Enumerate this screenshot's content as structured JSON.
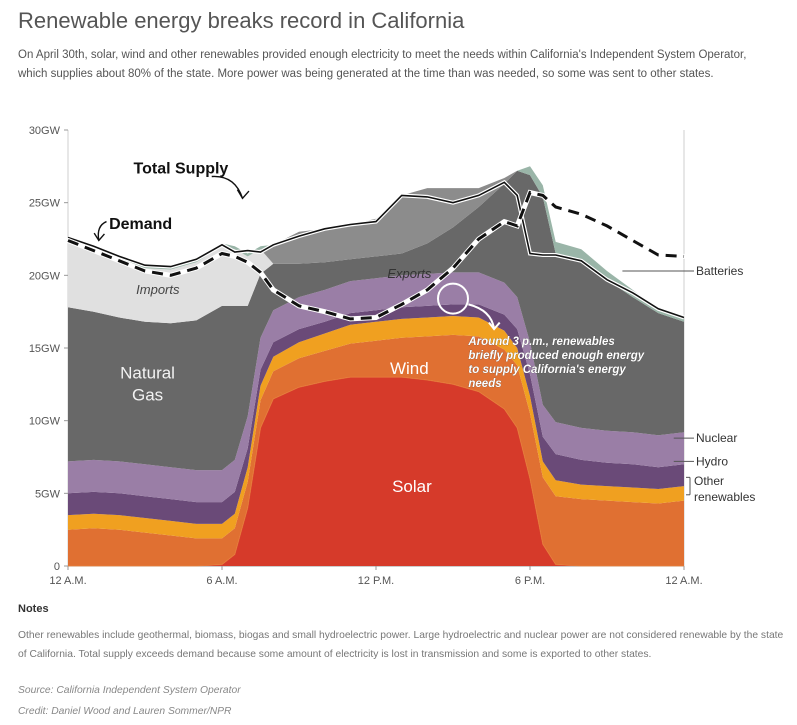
{
  "title": "Renewable energy breaks record in California",
  "subtitle": "On April 30th, solar, wind and other renewables provided enough electricity to meet the needs within California's Independent System Operator, which supplies about 80% of the state. More power was being generated at the time than was needed, so some was sent to other states.",
  "notes": {
    "heading": "Notes",
    "text": "Other renewables include geothermal, biomass, biogas and small hydroelectric power. Large hydroelectric and nuclear power are not considered renewable by the state of California. Total supply exceeds demand because some amount of electricity is lost in transmission and some is exported to other states."
  },
  "source": "Source: California Independent System Operator",
  "credit": "Credit: Daniel Wood and Lauren Sommer/NPR",
  "chart_data": {
    "type": "area",
    "x_unit": "hours since midnight",
    "xlim": [
      0,
      24
    ],
    "ylim": [
      0,
      30
    ],
    "y_ticks": [
      "0",
      "5GW",
      "10GW",
      "15GW",
      "20GW",
      "25GW",
      "30GW"
    ],
    "x_ticks": [
      "12 A.M.",
      "6 A.M.",
      "12 P.M.",
      "6 P.M.",
      "12 A.M."
    ],
    "x": [
      0,
      1,
      2,
      3,
      4,
      5,
      6,
      6.5,
      7,
      7.5,
      8,
      9,
      10,
      11,
      12,
      13,
      14,
      15,
      16,
      17,
      17.5,
      18,
      18.5,
      19,
      20,
      21,
      22,
      23,
      24
    ],
    "colors": {
      "Solar": "#d63a2a",
      "Other solar": "#e0532d",
      "Other renewables": "#f0a020",
      "Wind": "#e07032",
      "Hydro": "#6a4a78",
      "Nuclear": "#9a7ea6",
      "Natural Gas": "#686868",
      "Exports": "#8c8c8c",
      "Imports": "#e0e0e0",
      "Batteries": "#9ab5a8"
    },
    "series": [
      {
        "name": "Solar",
        "values": [
          0,
          0,
          0,
          0,
          0,
          0,
          0.1,
          0.8,
          4,
          9.5,
          11.5,
          12.3,
          12.7,
          13,
          13,
          13,
          12.8,
          12.5,
          12,
          10.8,
          9.5,
          6,
          1.5,
          0.1,
          0,
          0,
          0,
          0,
          0
        ]
      },
      {
        "name": "Wind",
        "values": [
          2.5,
          2.6,
          2.5,
          2.3,
          2.1,
          1.9,
          1.8,
          1.8,
          1.8,
          1.9,
          1.9,
          2,
          2.1,
          2.3,
          2.5,
          2.7,
          3,
          3.4,
          3.8,
          4.1,
          4.3,
          4.5,
          4.6,
          4.7,
          4.6,
          4.5,
          4.4,
          4.3,
          4.5
        ]
      },
      {
        "name": "Other renewables",
        "values": [
          1,
          1,
          1,
          1,
          1,
          1,
          1,
          1,
          1,
          1,
          1,
          1.1,
          1.2,
          1.3,
          1.3,
          1.3,
          1.3,
          1.3,
          1.3,
          1.3,
          1.2,
          1.2,
          1.1,
          1.1,
          1,
          1,
          1,
          1,
          1
        ]
      },
      {
        "name": "Hydro",
        "values": [
          1.5,
          1.5,
          1.5,
          1.5,
          1.5,
          1.5,
          1.5,
          1.5,
          1.3,
          1.1,
          1,
          0.9,
          0.8,
          0.8,
          0.8,
          0.8,
          0.8,
          0.8,
          0.9,
          1.1,
          1.3,
          1.5,
          1.7,
          1.8,
          1.7,
          1.6,
          1.6,
          1.5,
          1.5
        ]
      },
      {
        "name": "Nuclear",
        "values": [
          2.2,
          2.2,
          2.2,
          2.2,
          2.2,
          2.2,
          2.2,
          2.2,
          2.2,
          2.2,
          2.2,
          2.2,
          2.2,
          2.2,
          2.2,
          2.2,
          2.2,
          2.2,
          2.2,
          2.2,
          2.2,
          2.2,
          2.2,
          2.2,
          2.2,
          2.2,
          2.2,
          2.2,
          2.2
        ]
      },
      {
        "name": "Natural Gas",
        "values": [
          10.6,
          10.2,
          9.9,
          9.8,
          9.9,
          10.3,
          11.3,
          10.6,
          7.6,
          4.4,
          3.2,
          2.3,
          1.9,
          1.5,
          1.5,
          1.5,
          2.1,
          3.1,
          4.5,
          6.8,
          8.7,
          11.5,
          14.3,
          11.6,
          11.5,
          10.4,
          9.3,
          8.4,
          7.6
        ]
      },
      {
        "name": "Imports",
        "values": [
          4.6,
          4.3,
          3.9,
          3.7,
          3.7,
          4,
          4.1,
          3.9,
          3.4,
          1.7,
          0,
          0,
          0,
          0,
          0,
          0,
          0,
          0,
          0,
          0,
          0,
          0,
          0,
          0,
          0,
          0,
          0,
          0,
          0
        ]
      },
      {
        "name": "Exports",
        "values": [
          0,
          0,
          0,
          0,
          0,
          0,
          0,
          0,
          0,
          0,
          1.3,
          2.2,
          2.3,
          2.4,
          2.6,
          4,
          3.8,
          2.7,
          1.3,
          0.4,
          0,
          0,
          0,
          0,
          0,
          0,
          0,
          0,
          0
        ]
      },
      {
        "name": "Batteries",
        "values": [
          0.2,
          0.2,
          0.2,
          0.2,
          0.2,
          0.2,
          0.2,
          0.2,
          0.2,
          0.2,
          0,
          0,
          0,
          0,
          0,
          0,
          0,
          0,
          0,
          0,
          0,
          0.6,
          0.8,
          0.8,
          0.8,
          0.6,
          0.5,
          0.3,
          0.2
        ]
      }
    ],
    "total_supply": [
      22.6,
      22,
      21.3,
      20.7,
      20.6,
      21.1,
      22.1,
      21.6,
      21.7,
      21.6,
      22.1,
      22.7,
      23.2,
      23.5,
      23.7,
      25.5,
      25.4,
      25,
      25.5,
      26.4,
      25.5,
      21.5,
      21.4,
      21.4,
      21,
      19.7,
      18.8,
      17.7,
      17.1
    ],
    "demand": [
      22.4,
      21.7,
      21,
      20.3,
      20,
      20.5,
      21.5,
      21.3,
      20.9,
      20.2,
      19,
      17.9,
      17.5,
      17,
      17.1,
      18,
      19,
      20.5,
      22.5,
      23.7,
      23.4,
      25.7,
      25.5,
      24.7,
      24.2,
      23.4,
      22.4,
      21.4,
      21.3
    ],
    "labels": {
      "total_supply": "Total Supply",
      "demand": "Demand",
      "imports": "Imports",
      "exports": "Exports",
      "natural_gas": [
        "Natural",
        "Gas"
      ],
      "wind": "Wind",
      "solar": "Solar",
      "batteries": "Batteries",
      "nuclear": "Nuclear",
      "hydro": "Hydro",
      "other_renewables": [
        "Other",
        "renewables"
      ]
    },
    "annotation": [
      "Around 3 p.m., renewables",
      "briefly produced enough energy",
      "to supply California's energy",
      "needs"
    ]
  }
}
